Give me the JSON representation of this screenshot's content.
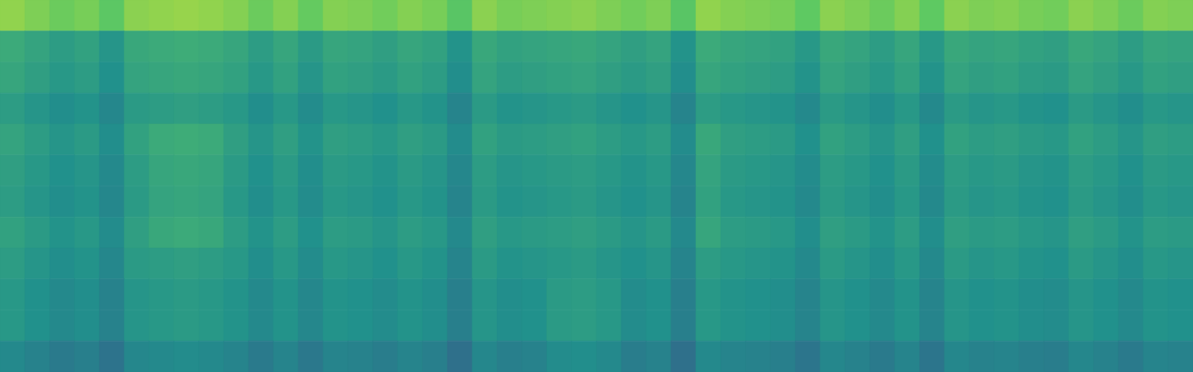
{
  "chart_data": {
    "type": "heatmap",
    "tick_labels": false,
    "color_range": [
      0,
      100
    ],
    "cells": [
      [
        83,
        80,
        77,
        79,
        74,
        82,
        83,
        84,
        83,
        81,
        77,
        81,
        76,
        81,
        80,
        78,
        81,
        79,
        73,
        82,
        79,
        80,
        81,
        82,
        80,
        78,
        80,
        73,
        83,
        81,
        80,
        79,
        75,
        82,
        80,
        77,
        81,
        75,
        82,
        80,
        81,
        79,
        78,
        82,
        80,
        77,
        81,
        80
      ],
      [
        61,
        58,
        55,
        57,
        52,
        60,
        61,
        62,
        61,
        59,
        55,
        59,
        54,
        59,
        58,
        56,
        59,
        57,
        51,
        60,
        57,
        58,
        59,
        60,
        58,
        56,
        58,
        51,
        61,
        59,
        58,
        57,
        53,
        60,
        58,
        55,
        59,
        53,
        60,
        58,
        59,
        57,
        56,
        60,
        58,
        55,
        59,
        58
      ],
      [
        59,
        56,
        53,
        55,
        50,
        58,
        59,
        60,
        59,
        57,
        53,
        57,
        52,
        57,
        56,
        54,
        57,
        55,
        49,
        58,
        55,
        56,
        57,
        58,
        56,
        54,
        56,
        49,
        59,
        57,
        56,
        55,
        51,
        58,
        56,
        53,
        57,
        51,
        58,
        56,
        57,
        55,
        54,
        58,
        56,
        53,
        57,
        56
      ],
      [
        55,
        52,
        49,
        51,
        46,
        54,
        55,
        56,
        55,
        53,
        49,
        53,
        48,
        53,
        52,
        50,
        53,
        51,
        45,
        54,
        51,
        52,
        53,
        54,
        52,
        50,
        52,
        45,
        55,
        53,
        52,
        51,
        47,
        54,
        52,
        49,
        53,
        47,
        54,
        52,
        53,
        51,
        50,
        54,
        52,
        49,
        53,
        52
      ],
      [
        58,
        55,
        52,
        54,
        49,
        57,
        61,
        62,
        61,
        56,
        52,
        56,
        51,
        56,
        55,
        53,
        56,
        54,
        48,
        57,
        54,
        55,
        56,
        57,
        55,
        53,
        55,
        48,
        60,
        56,
        55,
        54,
        50,
        57,
        55,
        52,
        56,
        50,
        57,
        55,
        56,
        54,
        53,
        57,
        55,
        52,
        56,
        55
      ],
      [
        56,
        53,
        50,
        52,
        47,
        55,
        59,
        60,
        59,
        54,
        50,
        54,
        49,
        54,
        53,
        51,
        54,
        52,
        46,
        55,
        52,
        53,
        54,
        55,
        53,
        51,
        53,
        46,
        58,
        54,
        53,
        52,
        48,
        55,
        53,
        50,
        54,
        48,
        55,
        53,
        54,
        52,
        51,
        55,
        53,
        50,
        54,
        53
      ],
      [
        55,
        52,
        49,
        51,
        46,
        54,
        58,
        59,
        58,
        53,
        49,
        53,
        48,
        53,
        52,
        50,
        53,
        51,
        45,
        54,
        51,
        52,
        53,
        54,
        52,
        50,
        52,
        45,
        57,
        53,
        52,
        51,
        47,
        54,
        52,
        49,
        53,
        47,
        54,
        52,
        53,
        51,
        50,
        54,
        52,
        49,
        53,
        52
      ],
      [
        57,
        54,
        51,
        53,
        48,
        56,
        60,
        61,
        60,
        55,
        51,
        55,
        50,
        55,
        54,
        52,
        55,
        53,
        47,
        56,
        53,
        54,
        55,
        56,
        54,
        52,
        54,
        47,
        59,
        55,
        54,
        53,
        49,
        56,
        54,
        51,
        55,
        49,
        56,
        54,
        55,
        53,
        52,
        56,
        54,
        51,
        55,
        54
      ],
      [
        55,
        52,
        49,
        51,
        46,
        54,
        55,
        56,
        55,
        53,
        49,
        53,
        48,
        53,
        52,
        50,
        53,
        51,
        45,
        54,
        51,
        52,
        53,
        54,
        52,
        50,
        52,
        45,
        55,
        53,
        52,
        51,
        47,
        54,
        52,
        49,
        53,
        47,
        54,
        52,
        53,
        51,
        50,
        54,
        52,
        49,
        53,
        52
      ],
      [
        53,
        50,
        47,
        49,
        44,
        52,
        53,
        54,
        53,
        51,
        47,
        51,
        46,
        51,
        50,
        48,
        51,
        49,
        43,
        52,
        49,
        50,
        54,
        55,
        53,
        48,
        50,
        43,
        53,
        51,
        50,
        49,
        45,
        52,
        50,
        47,
        51,
        45,
        52,
        50,
        51,
        49,
        48,
        52,
        50,
        47,
        51,
        50
      ],
      [
        53,
        50,
        47,
        49,
        44,
        52,
        53,
        54,
        53,
        51,
        47,
        51,
        46,
        51,
        50,
        48,
        51,
        49,
        43,
        52,
        49,
        50,
        54,
        55,
        53,
        48,
        50,
        43,
        53,
        51,
        50,
        49,
        45,
        52,
        50,
        47,
        51,
        45,
        52,
        50,
        51,
        49,
        48,
        52,
        50,
        47,
        51,
        50
      ],
      [
        47,
        44,
        41,
        43,
        38,
        46,
        47,
        48,
        47,
        45,
        41,
        45,
        40,
        45,
        44,
        42,
        45,
        43,
        37,
        46,
        43,
        44,
        48,
        49,
        47,
        42,
        44,
        37,
        47,
        45,
        44,
        43,
        39,
        46,
        44,
        41,
        45,
        39,
        46,
        44,
        45,
        43,
        42,
        46,
        44,
        41,
        45,
        44
      ]
    ]
  }
}
